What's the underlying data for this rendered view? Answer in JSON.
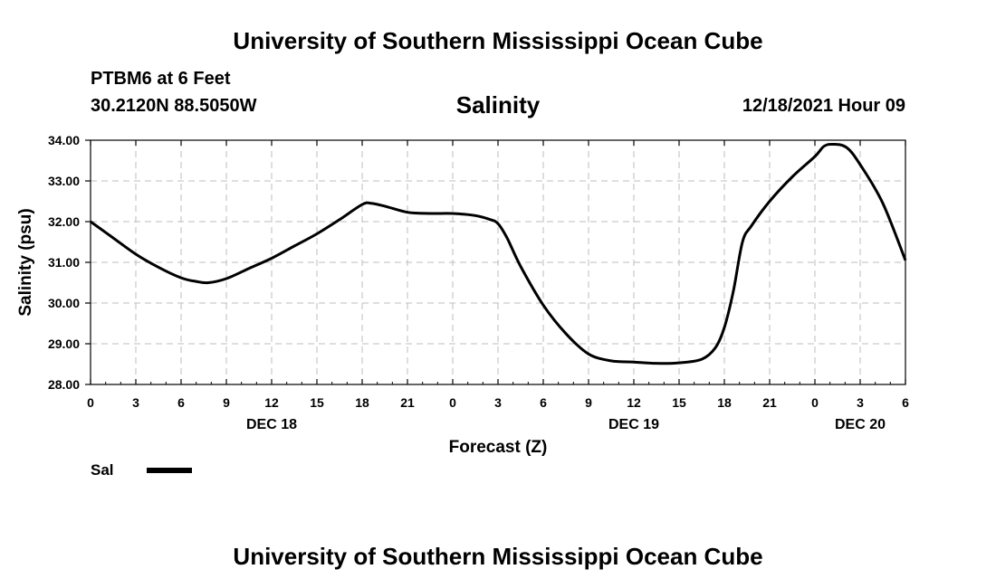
{
  "header": {
    "title": "University of Southern Mississippi Ocean Cube",
    "station": "PTBM6 at 6 Feet",
    "coords": "30.2120N  88.5050W",
    "chart_title": "Salinity",
    "datetime": "12/18/2021 Hour 09"
  },
  "footer": {
    "title": "University of Southern Mississippi Ocean Cube"
  },
  "legend": {
    "label": "Sal",
    "color": "#000000"
  },
  "chart_data": {
    "type": "line",
    "title": "Salinity",
    "xlabel": "Forecast (Z)",
    "ylabel": "Salinity (psu)",
    "xlim": [
      0,
      54
    ],
    "ylim": [
      28.0,
      34.0
    ],
    "x_ticks": [
      0,
      3,
      6,
      9,
      12,
      15,
      18,
      21,
      24,
      27,
      30,
      33,
      36,
      39,
      42,
      45,
      48,
      51,
      54
    ],
    "x_tick_labels": [
      "0",
      "3",
      "6",
      "9",
      "12",
      "15",
      "18",
      "21",
      "0",
      "3",
      "6",
      "9",
      "12",
      "15",
      "18",
      "21",
      "0",
      "3",
      "6"
    ],
    "y_ticks": [
      28.0,
      29.0,
      30.0,
      31.0,
      32.0,
      33.0,
      34.0
    ],
    "y_tick_labels": [
      "28.00",
      "29.00",
      "30.00",
      "31.00",
      "32.00",
      "33.00",
      "34.00"
    ],
    "date_labels": [
      {
        "x": 12,
        "label": "DEC 18"
      },
      {
        "x": 36,
        "label": "DEC 19"
      },
      {
        "x": 51,
        "label": "DEC 20"
      }
    ],
    "grid": true,
    "series": [
      {
        "name": "Sal",
        "color": "#000000",
        "x": [
          0,
          1.5,
          3,
          4.5,
          6,
          7,
          7.8,
          9,
          10.5,
          12,
          13.5,
          15,
          16.5,
          18,
          18.6,
          19.5,
          21,
          22.5,
          24,
          25.5,
          26.5,
          27,
          27.6,
          28.5,
          30,
          31.5,
          33,
          34.5,
          36,
          37.5,
          39,
          40.5,
          41.4,
          42,
          42.6,
          43.2,
          43.8,
          45,
          46.5,
          48,
          48.6,
          49.2,
          50.1,
          51,
          52.5,
          54
        ],
        "values": [
          32.0,
          31.6,
          31.2,
          30.88,
          30.62,
          30.53,
          30.5,
          30.6,
          30.85,
          31.1,
          31.4,
          31.7,
          32.05,
          32.42,
          32.45,
          32.38,
          32.23,
          32.2,
          32.2,
          32.15,
          32.05,
          31.95,
          31.6,
          30.9,
          29.95,
          29.25,
          28.75,
          28.58,
          28.55,
          28.52,
          28.53,
          28.62,
          28.9,
          29.4,
          30.3,
          31.5,
          31.9,
          32.5,
          33.1,
          33.6,
          33.85,
          33.9,
          33.82,
          33.4,
          32.45,
          31.05
        ]
      }
    ]
  }
}
